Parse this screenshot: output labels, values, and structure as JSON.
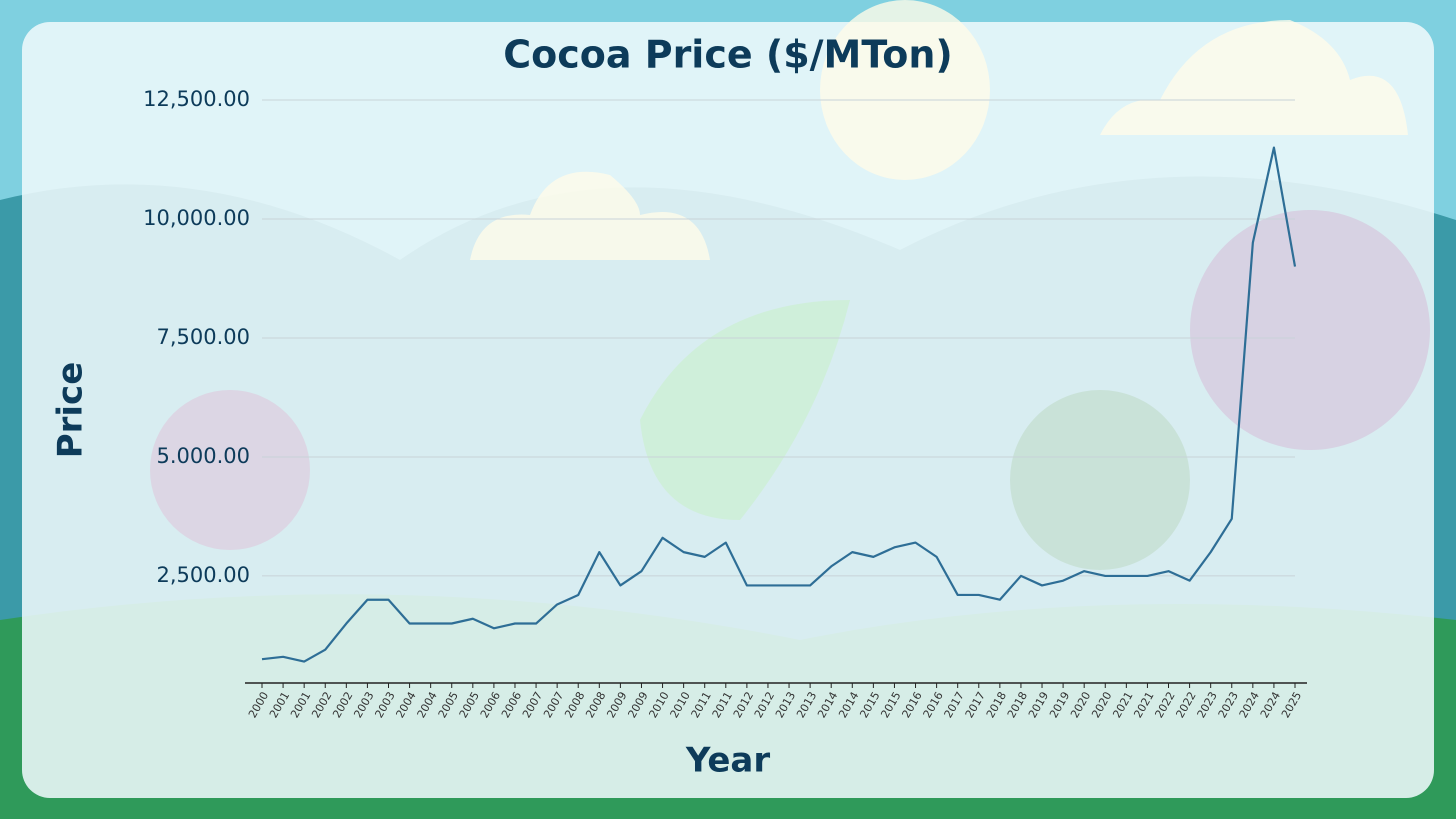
{
  "chart_data": {
    "type": "line",
    "title": "Cocoa Price ($/MTon)",
    "x_label": "Year",
    "y_label": "Price",
    "categories": [
      "2000",
      "2001",
      "2001",
      "2002",
      "2002",
      "2003",
      "2003",
      "2004",
      "2004",
      "2005",
      "2005",
      "2006",
      "2006",
      "2007",
      "2007",
      "2008",
      "2008",
      "2009",
      "2009",
      "2010",
      "2010",
      "2011",
      "2011",
      "2012",
      "2012",
      "2013",
      "2013",
      "2014",
      "2014",
      "2015",
      "2015",
      "2016",
      "2016",
      "2017",
      "2017",
      "2018",
      "2018",
      "2019",
      "2019",
      "2020",
      "2020",
      "2021",
      "2021",
      "2022",
      "2022",
      "2023",
      "2023",
      "2024",
      "2024",
      "2025"
    ],
    "series": [
      {
        "name": "Price",
        "color": "#2e6e96",
        "values": [
          750,
          800,
          700,
          950,
          1500,
          2000,
          2000,
          1500,
          1500,
          1500,
          1600,
          1400,
          1500,
          1500,
          1900,
          2100,
          3000,
          2300,
          2600,
          3300,
          3000,
          2900,
          3200,
          2300,
          2300,
          2300,
          2300,
          2700,
          3000,
          2900,
          3100,
          3200,
          2900,
          2100,
          2100,
          2000,
          2500,
          2300,
          2400,
          2600,
          2500,
          2500,
          2500,
          2600,
          2400,
          3000,
          3700,
          9500,
          11500,
          9000
        ]
      }
    ],
    "ylim": [
      250,
      12500
    ],
    "yticks": [
      {
        "value": 2500,
        "label": "2,500.00"
      },
      {
        "value": 5000,
        "label": "5.000.00"
      },
      {
        "value": 7500,
        "label": "7,500.00"
      },
      {
        "value": 10000,
        "label": "10,000.00"
      },
      {
        "value": 12500,
        "label": "12,500.00"
      }
    ],
    "grid": true
  }
}
